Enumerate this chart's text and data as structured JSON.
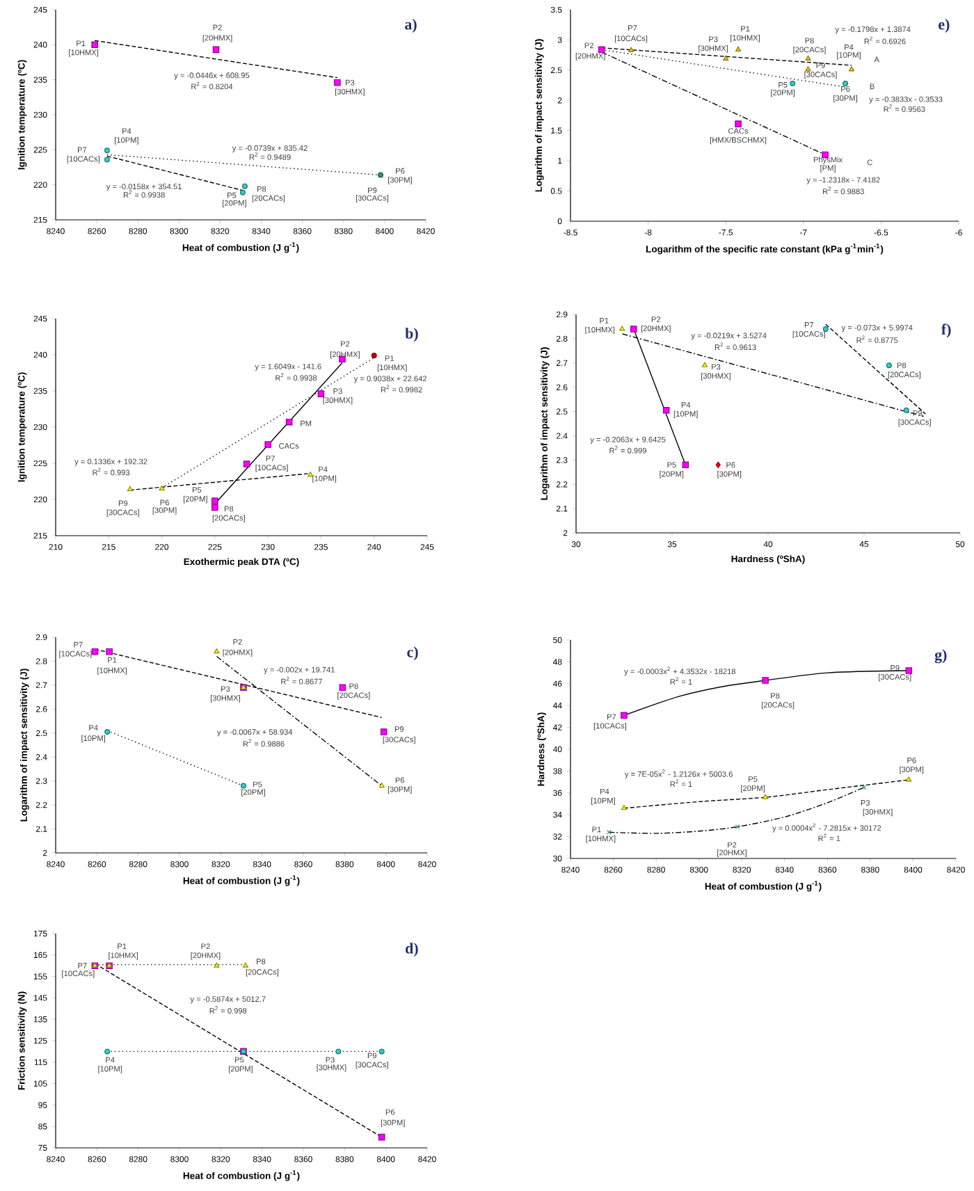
{
  "chart_data": [
    {
      "type": "scatter",
      "title": "a)",
      "xlabel": "Heat of combustion (J g$^{-1}$)",
      "ylabel": "Ignition temperature (ºC)",
      "xlim": [
        8240,
        8420
      ],
      "ylim": [
        215,
        245
      ],
      "xticks": [
        8240,
        8260,
        8280,
        8300,
        8320,
        8340,
        8360,
        8380,
        8400,
        8420
      ],
      "yticks": [
        215,
        220,
        225,
        230,
        235,
        240,
        245
      ],
      "series": [
        {
          "type": "line",
          "color": "#000000",
          "line_style": "dashed",
          "x": [
            8259,
            8377
          ],
          "values": [
            240.6,
            235.3
          ]
        },
        {
          "type": "line",
          "color": "#000000",
          "line_style": "dotted",
          "x": [
            8265,
            8398
          ],
          "values": [
            224.3,
            221.4
          ]
        },
        {
          "type": "line",
          "color": "#000000",
          "line_style": "dashed",
          "x": [
            8265,
            8331
          ],
          "values": [
            224.1,
            219.2
          ]
        },
        {
          "color": "#ff00ff",
          "marker": "square",
          "x": [
            8259,
            8318,
            8377
          ],
          "values": [
            240,
            239.3,
            234.6
          ]
        },
        {
          "color": "#33cccc",
          "marker": "circle",
          "x": [
            8265,
            8265,
            8332,
            8331
          ],
          "values": [
            224.9,
            223.6,
            219.8,
            218.9
          ]
        },
        {
          "color": "#339966",
          "marker": "circle",
          "x": [
            8398
          ],
          "values": [
            221.4
          ]
        }
      ],
      "annotations": [
        {
          "text": "P1",
          "x": 8259,
          "y": 240
        },
        {
          "text": "[10HMX]",
          "x": 8259,
          "y": 240
        },
        {
          "text": "P2",
          "x": 8318,
          "y": 239.3
        },
        {
          "text": "[20HMX]",
          "x": 8318,
          "y": 239.3
        },
        {
          "text": "P3",
          "x": 8377,
          "y": 234.6
        },
        {
          "text": "[30HMX]",
          "x": 8377,
          "y": 234.6
        },
        "y = -0.0446x + 608.95",
        "R$^{2}$ = 0.8204",
        {
          "text": "P4",
          "x": 8265,
          "y": 224.9
        },
        {
          "text": "[10PM]",
          "x": 8265,
          "y": 224.9
        },
        {
          "text": "P7",
          "x": 8265,
          "y": 223.6
        },
        {
          "text": "[10CACs]",
          "x": 8265,
          "y": 223.6
        },
        "y = -0.0739x + 835.42",
        "R$^{2}$ = 0.9489",
        {
          "text": "P6",
          "x": 8398,
          "y": 221.4
        },
        {
          "text": "[30PM]",
          "x": 8398,
          "y": 221.4
        },
        {
          "text": "P9",
          "x": 8398,
          "y": 221.4
        },
        {
          "text": "[30CACs]",
          "x": 8398,
          "y": 221.4
        },
        {
          "text": "P8",
          "x": 8332,
          "y": 219.8
        },
        {
          "text": "[20CACs]",
          "x": 8332,
          "y": 219.8
        },
        {
          "text": "P5",
          "x": 8331,
          "y": 218.9
        },
        {
          "text": "[20PM]",
          "x": 8331,
          "y": 218.9
        },
        "y = -0.0158x + 354.51",
        "R$^{2}$ = 0.9938"
      ]
    },
    {
      "type": "scatter",
      "title": "e)",
      "xlabel": "Logarithm of the specific rate constant  (kPa g$^{-1}$min$^{-1}$)",
      "ylabel": "Logarithm of impact sensitivity (J)",
      "xlim": [
        -8.5,
        -6
      ],
      "ylim": [
        0,
        3.5
      ],
      "xticks": [
        -8.5,
        -8,
        -7.5,
        -7,
        -6.5,
        -6
      ],
      "yticks": [
        0,
        0.5,
        1,
        1.5,
        2,
        2.5,
        3,
        3.5
      ],
      "series": [
        {
          "type": "line",
          "color": "#000000",
          "line_style": "dashed",
          "x": [
            -8.3,
            -6.69
          ],
          "values": [
            2.87,
            2.58
          ]
        },
        {
          "type": "line",
          "color": "#000000",
          "line_style": "dotted",
          "x": [
            -8.3,
            -6.73
          ],
          "values": [
            2.84,
            2.22
          ]
        },
        {
          "type": "line",
          "color": "#000000",
          "line_style": "dashdot",
          "x": [
            -8.3,
            -6.86
          ],
          "values": [
            2.8,
            1.1
          ]
        },
        {
          "color": "#ff00ff",
          "marker": "square",
          "x": [
            -8.3,
            -7.42,
            -6.86
          ],
          "values": [
            2.84,
            1.61,
            1.1
          ]
        },
        {
          "color": "#ffcc00",
          "marker": "triangle",
          "x": [
            -8.11,
            -7.5,
            -7.42,
            -6.97,
            -6.97,
            -6.69
          ],
          "values": [
            2.83,
            2.69,
            2.84,
            2.69,
            2.51,
            2.51
          ]
        },
        {
          "color": "#33cccc",
          "marker": "circle",
          "x": [
            -7.07,
            -6.73
          ],
          "values": [
            2.28,
            2.28
          ]
        }
      ],
      "annotations": [
        {
          "text": "P2",
          "x": -8.3,
          "y": 2.84
        },
        {
          "text": "[20HMX]",
          "x": -8.3,
          "y": 2.84
        },
        {
          "text": "P7",
          "x": -8.11,
          "y": 2.83
        },
        {
          "text": "[10CACs]",
          "x": -8.11,
          "y": 2.83
        },
        {
          "text": "P3",
          "x": -7.5,
          "y": 2.69
        },
        {
          "text": "[30HMX]",
          "x": -7.5,
          "y": 2.69
        },
        {
          "text": "P1",
          "x": -7.42,
          "y": 2.84
        },
        {
          "text": "[10HMX]",
          "x": -7.42,
          "y": 2.84
        },
        {
          "text": "P8",
          "x": -6.97,
          "y": 2.69
        },
        {
          "text": "[20CACs]",
          "x": -6.97,
          "y": 2.69
        },
        {
          "text": "P4",
          "x": -6.69,
          "y": 2.51
        },
        {
          "text": "[10PM]",
          "x": -6.69,
          "y": 2.51
        },
        {
          "text": "P9",
          "x": -6.97,
          "y": 2.51
        },
        {
          "text": "[30CACs]",
          "x": -6.97,
          "y": 2.51
        },
        {
          "text": "P5",
          "x": -7.07,
          "y": 2.28
        },
        {
          "text": "[20PM]",
          "x": -7.07,
          "y": 2.28
        },
        {
          "text": "P6",
          "x": -6.73,
          "y": 2.28
        },
        {
          "text": "[30PM]",
          "x": -6.73,
          "y": 2.28
        },
        "A",
        "B",
        "C",
        "y = -0.1798x + 1.3874",
        "R$^{2}$ = 0.6926",
        "y = -0.3833x - 0.3533",
        "R$^{2}$ = 0.9563",
        {
          "text": "CACs",
          "x": -7.42,
          "y": 1.61
        },
        {
          "text": "[HMX/BSCHMX]",
          "x": -7.42,
          "y": 1.61
        },
        {
          "text": "PhysMix",
          "x": -6.86,
          "y": 1.1
        },
        {
          "text": "[PM]",
          "x": -6.86,
          "y": 1.1
        },
        "y = -1.2318x - 7.4182",
        "R$^{2}$ = 0.9883"
      ]
    },
    {
      "type": "scatter",
      "title": "b)",
      "xlabel": "Exothermic peak DTA (ºC)",
      "ylabel": "Ignition temperature  (ºC)",
      "xlim": [
        210,
        245
      ],
      "ylim": [
        215,
        245
      ],
      "xticks": [
        210,
        215,
        220,
        225,
        230,
        235,
        240,
        245
      ],
      "yticks": [
        215,
        220,
        225,
        230,
        235,
        240,
        245
      ],
      "series": [
        {
          "type": "line",
          "color": "#000000",
          "line_style": "solid",
          "x": [
            225,
            237
          ],
          "values": [
            219.4,
            238.9
          ]
        },
        {
          "type": "line",
          "color": "#000000",
          "line_style": "dotted",
          "x": [
            220,
            240
          ],
          "values": [
            221.6,
            239.6
          ]
        },
        {
          "type": "line",
          "color": "#000000",
          "line_style": "dashed",
          "x": [
            217,
            234
          ],
          "values": [
            221.3,
            223.6
          ]
        },
        {
          "color": "#ff00ff",
          "marker": "square",
          "x": [
            237,
            235,
            232,
            230,
            228,
            225,
            225
          ],
          "values": [
            239.4,
            234.6,
            230.7,
            227.6,
            224.9,
            218.9,
            219.8
          ]
        },
        {
          "color": "#cc0000",
          "marker": "circle",
          "x": [
            240
          ],
          "values": [
            239.9
          ]
        },
        {
          "color": "#ffff00",
          "marker": "triangle",
          "x": [
            217,
            220,
            234
          ],
          "values": [
            221.4,
            221.5,
            223.4
          ]
        }
      ],
      "annotations": [
        {
          "text": "P2",
          "x": 237,
          "y": 239.4
        },
        {
          "text": "[20HMX]",
          "x": 237,
          "y": 239.4
        },
        {
          "text": "P1",
          "x": 240,
          "y": 239.9
        },
        {
          "text": "[10HMX]",
          "x": 240,
          "y": 239.9
        },
        "y = 1.6049x - 141.6",
        "R$^{2}$ = 0.9938",
        "y = 0.9038x + 22.642",
        "R$^{2}$ = 0.9982",
        {
          "text": "P3",
          "x": 235,
          "y": 234.6
        },
        {
          "text": "[30HMX]",
          "x": 235,
          "y": 234.6
        },
        {
          "text": "PM",
          "x": 232,
          "y": 230.7
        },
        {
          "text": "CACs",
          "x": 230,
          "y": 227.6
        },
        {
          "text": "P7",
          "x": 228,
          "y": 224.9
        },
        {
          "text": "[10CACs]",
          "x": 228,
          "y": 224.9
        },
        "y = 0.1336x + 192.32",
        "R$^{2}$ = 0.993",
        {
          "text": "P4",
          "x": 234,
          "y": 223.4
        },
        {
          "text": "[10PM]",
          "x": 234,
          "y": 223.4
        },
        {
          "text": "P9",
          "x": 217,
          "y": 221.4
        },
        {
          "text": "[30CACs]",
          "x": 217,
          "y": 221.4
        },
        {
          "text": "P6",
          "x": 220,
          "y": 221.5
        },
        {
          "text": "[30PM]",
          "x": 220,
          "y": 221.5
        },
        {
          "text": "P5",
          "x": 225,
          "y": 219.8
        },
        {
          "text": "[20PM]",
          "x": 225,
          "y": 219.8
        },
        {
          "text": "P8",
          "x": 225,
          "y": 218.9
        },
        {
          "text": "[20CACs]",
          "x": 225,
          "y": 218.9
        }
      ]
    },
    {
      "type": "scatter",
      "title": "f)",
      "xlabel": "Hardness  (ºShA)",
      "ylabel": "Logarithm of impact sensitivity  (J)",
      "xlim": [
        30,
        50
      ],
      "ylim": [
        2,
        2.9
      ],
      "xticks": [
        30,
        35,
        40,
        45,
        50
      ],
      "yticks": [
        2,
        2.1,
        2.2,
        2.3,
        2.4,
        2.5,
        2.6,
        2.7,
        2.8,
        2.9
      ],
      "series": [
        {
          "type": "line",
          "color": "#000000",
          "line_style": "solid",
          "x": [
            33.0,
            35.7
          ],
          "values": [
            2.84,
            2.28
          ]
        },
        {
          "type": "line",
          "color": "#000000",
          "line_style": "dashdot",
          "x": [
            32.4,
            48.1
          ],
          "values": [
            2.82,
            2.48
          ]
        },
        {
          "type": "line",
          "color": "#000000",
          "line_style": "dashed",
          "x": [
            43.0,
            48.2
          ],
          "values": [
            2.86,
            2.49
          ]
        },
        {
          "color": "#ffff00",
          "marker": "triangle",
          "x": [
            32.4,
            36.7
          ],
          "values": [
            2.84,
            2.69
          ]
        },
        {
          "color": "#ff00ff",
          "marker": "square",
          "x": [
            33.0,
            34.7,
            35.7
          ],
          "values": [
            2.84,
            2.505,
            2.28
          ]
        },
        {
          "color": "#ff0000",
          "marker": "diamond",
          "x": [
            37.4
          ],
          "values": [
            2.28
          ]
        },
        {
          "color": "#33cccc",
          "marker": "circle",
          "x": [
            43.0,
            46.3,
            47.2
          ],
          "values": [
            2.84,
            2.69,
            2.505
          ]
        }
      ],
      "annotations": [
        {
          "text": "P1",
          "x": 32.4,
          "y": 2.84
        },
        {
          "text": "[10HMX]",
          "x": 32.4,
          "y": 2.84
        },
        {
          "text": "P2",
          "x": 33.0,
          "y": 2.84
        },
        {
          "text": "[20HMX]",
          "x": 33.0,
          "y": 2.84
        },
        "y = -0.0219x + 3.5274",
        "R$^{2}$ = 0.9613",
        {
          "text": "P7",
          "x": 43.0,
          "y": 2.84
        },
        {
          "text": "[10CACs]",
          "x": 43.0,
          "y": 2.84
        },
        "y = -0.073x + 5.9974",
        "R$^{2}$ = 0.8775",
        {
          "text": "P3",
          "x": 36.7,
          "y": 2.69
        },
        {
          "text": "[30HMX]",
          "x": 36.7,
          "y": 2.69
        },
        {
          "text": "P8",
          "x": 46.3,
          "y": 2.69
        },
        {
          "text": "[20CACs]",
          "x": 46.3,
          "y": 2.69
        },
        {
          "text": "P4",
          "x": 34.7,
          "y": 2.505
        },
        {
          "text": "[10PM]",
          "x": 34.7,
          "y": 2.505
        },
        {
          "text": "P9",
          "x": 47.2,
          "y": 2.505
        },
        {
          "text": "[30CACs]",
          "x": 47.2,
          "y": 2.505
        },
        "y = -0.2063x + 9.6425",
        "R$^{2}$ = 0.999",
        {
          "text": "P5",
          "x": 35.7,
          "y": 2.28
        },
        {
          "text": "[20PM]",
          "x": 35.7,
          "y": 2.28
        },
        {
          "text": "P6",
          "x": 37.4,
          "y": 2.28
        },
        {
          "text": "[30PM]",
          "x": 37.4,
          "y": 2.28
        }
      ]
    },
    {
      "type": "scatter",
      "title": "c)",
      "xlabel": "Heat of combustion (J g$^{-1}$)",
      "ylabel": "Logarithm of impact sensitivity (J)",
      "xlim": [
        8240,
        8420
      ],
      "ylim": [
        2,
        2.9
      ],
      "xticks": [
        8240,
        8260,
        8280,
        8300,
        8320,
        8340,
        8360,
        8380,
        8400,
        8420
      ],
      "yticks": [
        2,
        2.1,
        2.2,
        2.3,
        2.4,
        2.5,
        2.6,
        2.7,
        2.8,
        2.9
      ],
      "series": [
        {
          "type": "line",
          "color": "#000000",
          "line_style": "dashed",
          "x": [
            8259,
            8398
          ],
          "values": [
            2.85,
            2.565
          ]
        },
        {
          "type": "line",
          "color": "#000000",
          "line_style": "dashdot",
          "x": [
            8318,
            8398
          ],
          "values": [
            2.82,
            2.28
          ]
        },
        {
          "type": "line",
          "color": "#000000",
          "line_style": "dotted",
          "x": [
            8265,
            8331
          ],
          "values": [
            2.51,
            2.28
          ]
        },
        {
          "color": "#ff00ff",
          "marker": "square",
          "x": [
            8259,
            8266,
            8331,
            8379,
            8399
          ],
          "values": [
            2.84,
            2.84,
            2.69,
            2.69,
            2.505
          ]
        },
        {
          "color": "#ffff00",
          "marker": "triangle",
          "x": [
            8318,
            8331,
            8398
          ],
          "values": [
            2.84,
            2.69,
            2.28
          ]
        },
        {
          "color": "#33cccc",
          "marker": "circle",
          "x": [
            8265,
            8331
          ],
          "values": [
            2.505,
            2.28
          ]
        }
      ],
      "annotations": [
        {
          "text": "P7",
          "x": 8259,
          "y": 2.84
        },
        {
          "text": "[10CACs]",
          "x": 8259,
          "y": 2.84
        },
        {
          "text": "P1",
          "x": 8266,
          "y": 2.84
        },
        {
          "text": "[10HMX]",
          "x": 8266,
          "y": 2.84
        },
        {
          "text": "P2",
          "x": 8318,
          "y": 2.84
        },
        {
          "text": "[20HMX]",
          "x": 8318,
          "y": 2.84
        },
        "y = -0.002x + 19.741",
        "R$^{2}$ = 0.8677",
        {
          "text": "P3",
          "x": 8331,
          "y": 2.69
        },
        {
          "text": "[30HMX]",
          "x": 8331,
          "y": 2.69
        },
        {
          "text": "P8",
          "x": 8379,
          "y": 2.69
        },
        {
          "text": "[20CACs]",
          "x": 8379,
          "y": 2.69
        },
        {
          "text": "P4",
          "x": 8265,
          "y": 2.505
        },
        {
          "text": "[10PM]",
          "x": 8265,
          "y": 2.505
        },
        "y = -0.0067x + 58.934",
        "R$^{2}$ = 0.9886",
        {
          "text": "P9",
          "x": 8399,
          "y": 2.505
        },
        {
          "text": "[30CACs]",
          "x": 8399,
          "y": 2.505
        },
        {
          "text": "P5",
          "x": 8331,
          "y": 2.28
        },
        {
          "text": "[20PM]",
          "x": 8331,
          "y": 2.28
        },
        {
          "text": "P6",
          "x": 8398,
          "y": 2.28
        },
        {
          "text": "[30PM]",
          "x": 8398,
          "y": 2.28
        }
      ]
    },
    {
      "type": "scatter",
      "title": "g)",
      "xlabel": "Heat of combustion (J g$^{-1}$)",
      "ylabel": "Hardness  (ºShA)",
      "xlim": [
        8240,
        8420
      ],
      "ylim": [
        30,
        50
      ],
      "xticks": [
        8240,
        8260,
        8280,
        8300,
        8320,
        8340,
        8360,
        8380,
        8400,
        8420
      ],
      "yticks": [
        30,
        32,
        34,
        36,
        38,
        40,
        42,
        44,
        46,
        48,
        50
      ],
      "series": [
        {
          "type": "line",
          "color": "#000000",
          "line_style": "solid",
          "x": [
            8265,
            8290,
            8310,
            8331,
            8360,
            8398
          ],
          "values": [
            43.1,
            44.8,
            45.7,
            46.3,
            47.0,
            47.2
          ]
        },
        {
          "type": "line",
          "color": "#000000",
          "line_style": "dashed",
          "x": [
            8265,
            8300,
            8331,
            8360,
            8398
          ],
          "values": [
            34.6,
            35.2,
            35.6,
            36.3,
            37.2
          ]
        },
        {
          "type": "line",
          "color": "#000000",
          "line_style": "dashdot",
          "x": [
            8258,
            8280,
            8300,
            8318,
            8340,
            8360,
            8377
          ],
          "values": [
            32.4,
            32.3,
            32.5,
            32.9,
            33.8,
            35.1,
            36.5
          ]
        },
        {
          "color": "#ff00ff",
          "marker": "square",
          "x": [
            8265,
            8331,
            8398
          ],
          "values": [
            43.1,
            46.3,
            47.2
          ]
        },
        {
          "color": "#ffff00",
          "marker": "triangle",
          "x": [
            8265,
            8331,
            8398
          ],
          "values": [
            34.6,
            35.6,
            37.2
          ]
        },
        {
          "color": "#339966",
          "marker": "cross",
          "x": [
            8258,
            8318,
            8377
          ],
          "values": [
            32.4,
            32.9,
            36.5
          ]
        }
      ],
      "annotations": [
        "y = -0.0003x$^{2}$ + 4.3532x - 18218",
        "R$^{2}$ = 1",
        {
          "text": "P9",
          "x": 8398,
          "y": 47.2
        },
        {
          "text": "[30CACs]",
          "x": 8398,
          "y": 47.2
        },
        {
          "text": "P8",
          "x": 8331,
          "y": 46.3
        },
        {
          "text": "[20CACs]",
          "x": 8331,
          "y": 46.3
        },
        {
          "text": "P7",
          "x": 8265,
          "y": 43.1
        },
        {
          "text": "[10CACs]",
          "x": 8265,
          "y": 43.1
        },
        {
          "text": "P6",
          "x": 8398,
          "y": 37.2
        },
        {
          "text": "[30PM]",
          "x": 8398,
          "y": 37.2
        },
        "y = 7E-05x$^{2}$ - 1.2126x + 5003.6",
        "R$^{2}$ = 1",
        {
          "text": "P5",
          "x": 8331,
          "y": 35.6
        },
        {
          "text": "[20PM]",
          "x": 8331,
          "y": 35.6
        },
        {
          "text": "P4",
          "x": 8265,
          "y": 34.6
        },
        {
          "text": "[10PM]",
          "x": 8265,
          "y": 34.6
        },
        {
          "text": "P3",
          "x": 8377,
          "y": 36.5
        },
        {
          "text": "[30HMX]",
          "x": 8377,
          "y": 36.5
        },
        {
          "text": "P1",
          "x": 8258,
          "y": 32.4
        },
        {
          "text": "[10HMX]",
          "x": 8258,
          "y": 32.4
        },
        {
          "text": "P2",
          "x": 8318,
          "y": 32.9
        },
        {
          "text": "[20HMX]",
          "x": 8318,
          "y": 32.9
        },
        "y = 0.0004x$^{2}$ - 7.2815x + 30172",
        "R$^{2}$ = 1"
      ]
    },
    {
      "type": "scatter",
      "title": "d)",
      "xlabel": "Heat of combustion (J g$^{-1}$)",
      "ylabel": "Friction sensitivity  (N)",
      "xlim": [
        8240,
        8420
      ],
      "ylim": [
        75,
        175
      ],
      "xticks": [
        8240,
        8260,
        8280,
        8300,
        8320,
        8340,
        8360,
        8380,
        8400,
        8420
      ],
      "yticks": [
        75,
        85,
        95,
        105,
        115,
        125,
        135,
        145,
        155,
        165,
        175
      ],
      "series": [
        {
          "type": "line",
          "color": "#000000",
          "line_style": "dotted",
          "x": [
            8259,
            8332
          ],
          "values": [
            160.5,
            160.5
          ]
        },
        {
          "type": "line",
          "color": "#000000",
          "line_style": "dotted",
          "x": [
            8265,
            8398
          ],
          "values": [
            120,
            120
          ]
        },
        {
          "type": "line",
          "color": "#000000",
          "line_style": "dashed",
          "x": [
            8259,
            8398
          ],
          "values": [
            161,
            80
          ]
        },
        {
          "color": "#ff00ff",
          "marker": "square",
          "x": [
            8259,
            8266,
            8331,
            8398
          ],
          "values": [
            160,
            160,
            120,
            80
          ]
        },
        {
          "color": "#ffff00",
          "marker": "triangle",
          "x": [
            8259,
            8266,
            8318,
            8332
          ],
          "values": [
            160,
            160,
            160,
            160
          ]
        },
        {
          "color": "#33cccc",
          "marker": "circle",
          "x": [
            8265,
            8331,
            8377,
            8398
          ],
          "values": [
            120,
            120,
            120,
            120
          ]
        }
      ],
      "annotations": [
        {
          "text": "P1",
          "x": 8266,
          "y": 160
        },
        {
          "text": "[10HMX]",
          "x": 8266,
          "y": 160
        },
        {
          "text": "P2",
          "x": 8318,
          "y": 160
        },
        {
          "text": "[20HMX]",
          "x": 8318,
          "y": 160
        },
        {
          "text": "P7",
          "x": 8259,
          "y": 160
        },
        {
          "text": "[10CACs]",
          "x": 8259,
          "y": 160
        },
        {
          "text": "P8",
          "x": 8332,
          "y": 160
        },
        {
          "text": "[20CACs]",
          "x": 8332,
          "y": 160
        },
        "y = -0.5874x + 5012.7",
        "R$^{2}$ = 0.998",
        {
          "text": "P4",
          "x": 8265,
          "y": 120
        },
        {
          "text": "[10PM]",
          "x": 8265,
          "y": 120
        },
        {
          "text": "P5",
          "x": 8331,
          "y": 120
        },
        {
          "text": "[20PM]",
          "x": 8331,
          "y": 120
        },
        {
          "text": "P3",
          "x": 8377,
          "y": 120
        },
        {
          "text": "[30HMX]",
          "x": 8377,
          "y": 120
        },
        {
          "text": "P9",
          "x": 8398,
          "y": 120
        },
        {
          "text": "[30CACs]",
          "x": 8398,
          "y": 120
        },
        {
          "text": "P6",
          "x": 8398,
          "y": 80
        },
        {
          "text": "[30PM]",
          "x": 8398,
          "y": 80
        }
      ]
    }
  ]
}
